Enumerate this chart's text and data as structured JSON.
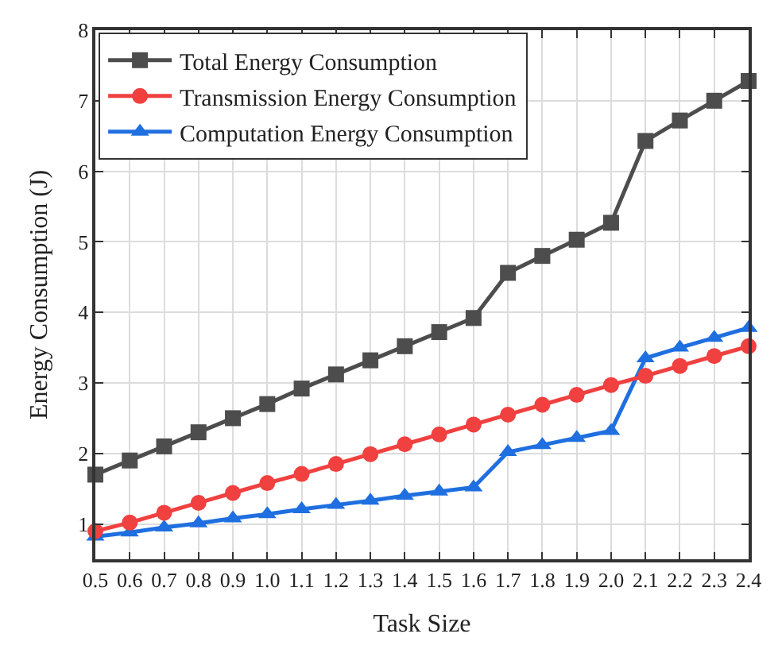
{
  "chart_data": {
    "type": "line",
    "xlabel": "Task Size",
    "ylabel": "Energy Consumption (J)",
    "x": [
      0.5,
      0.6,
      0.7,
      0.8,
      0.9,
      1.0,
      1.1,
      1.2,
      1.3,
      1.4,
      1.5,
      1.6,
      1.7,
      1.8,
      1.9,
      2.0,
      2.1,
      2.2,
      2.3,
      2.4
    ],
    "xlim": [
      0.5,
      2.4
    ],
    "xticks": [
      0.5,
      0.6,
      0.7,
      0.8,
      0.9,
      {
        "value": 1.0,
        "label": "1.0"
      },
      1.1,
      1.2,
      1.3,
      1.4,
      1.5,
      1.6,
      1.7,
      1.8,
      1.9,
      {
        "value": 2.0,
        "label": "2.0"
      },
      2.1,
      2.2,
      2.3,
      2.4
    ],
    "ylim": [
      0.5,
      8
    ],
    "yticks": [
      1,
      2,
      3,
      4,
      5,
      6,
      7,
      8
    ],
    "grid": true,
    "legend": "top left",
    "line_style": "solid",
    "series": [
      {
        "name": "Total Energy Consumption",
        "color": "#4d4d4d",
        "marker": "square",
        "values": [
          1.7,
          1.9,
          2.1,
          2.3,
          2.5,
          2.7,
          2.92,
          3.12,
          3.32,
          3.52,
          3.72,
          3.92,
          4.56,
          4.8,
          5.03,
          5.27,
          6.43,
          6.72,
          7.0,
          7.28
        ]
      },
      {
        "name": "Transmission Energy Consumption",
        "color": "#f04040",
        "marker": "circle",
        "values": [
          0.9,
          1.02,
          1.16,
          1.3,
          1.44,
          1.58,
          1.71,
          1.85,
          1.99,
          2.13,
          2.27,
          2.41,
          2.55,
          2.69,
          2.83,
          2.97,
          3.1,
          3.24,
          3.38,
          3.52
        ]
      },
      {
        "name": "Computation Energy Consumption",
        "color": "#1f6fe0",
        "marker": "triangle",
        "values": [
          0.82,
          0.88,
          0.95,
          1.01,
          1.08,
          1.14,
          1.21,
          1.27,
          1.33,
          1.4,
          1.46,
          1.52,
          2.02,
          2.12,
          2.22,
          2.32,
          3.35,
          3.5,
          3.64,
          3.78
        ]
      }
    ]
  }
}
